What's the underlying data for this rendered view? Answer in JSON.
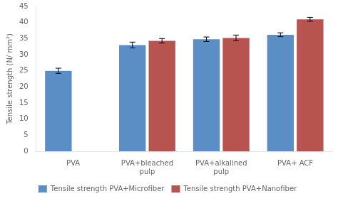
{
  "chart_data": {
    "type": "bar",
    "categories": [
      "PVA",
      "PVA+bleached\npulp",
      "PVA+alkalined\npulp",
      "PVA+ ACF"
    ],
    "series": [
      {
        "name": "Tensile strength PVA+Microfiber",
        "color": "#5B8EC4",
        "values": [
          25.0,
          33.0,
          34.8,
          36.2
        ],
        "errors": [
          0.8,
          0.9,
          0.7,
          0.6
        ]
      },
      {
        "name": "Tensile strength PVA+Nanofiber",
        "color": "#B85450",
        "values": [
          null,
          34.3,
          35.2,
          41.0
        ],
        "errors": [
          null,
          0.7,
          0.9,
          0.6
        ]
      }
    ],
    "ylabel": "Tensile strength (N/ mm²)",
    "ylim": [
      0,
      45
    ],
    "yticks": [
      0,
      5,
      10,
      15,
      20,
      25,
      30,
      35,
      40,
      45
    ],
    "grid": false,
    "legend": "bottom"
  }
}
